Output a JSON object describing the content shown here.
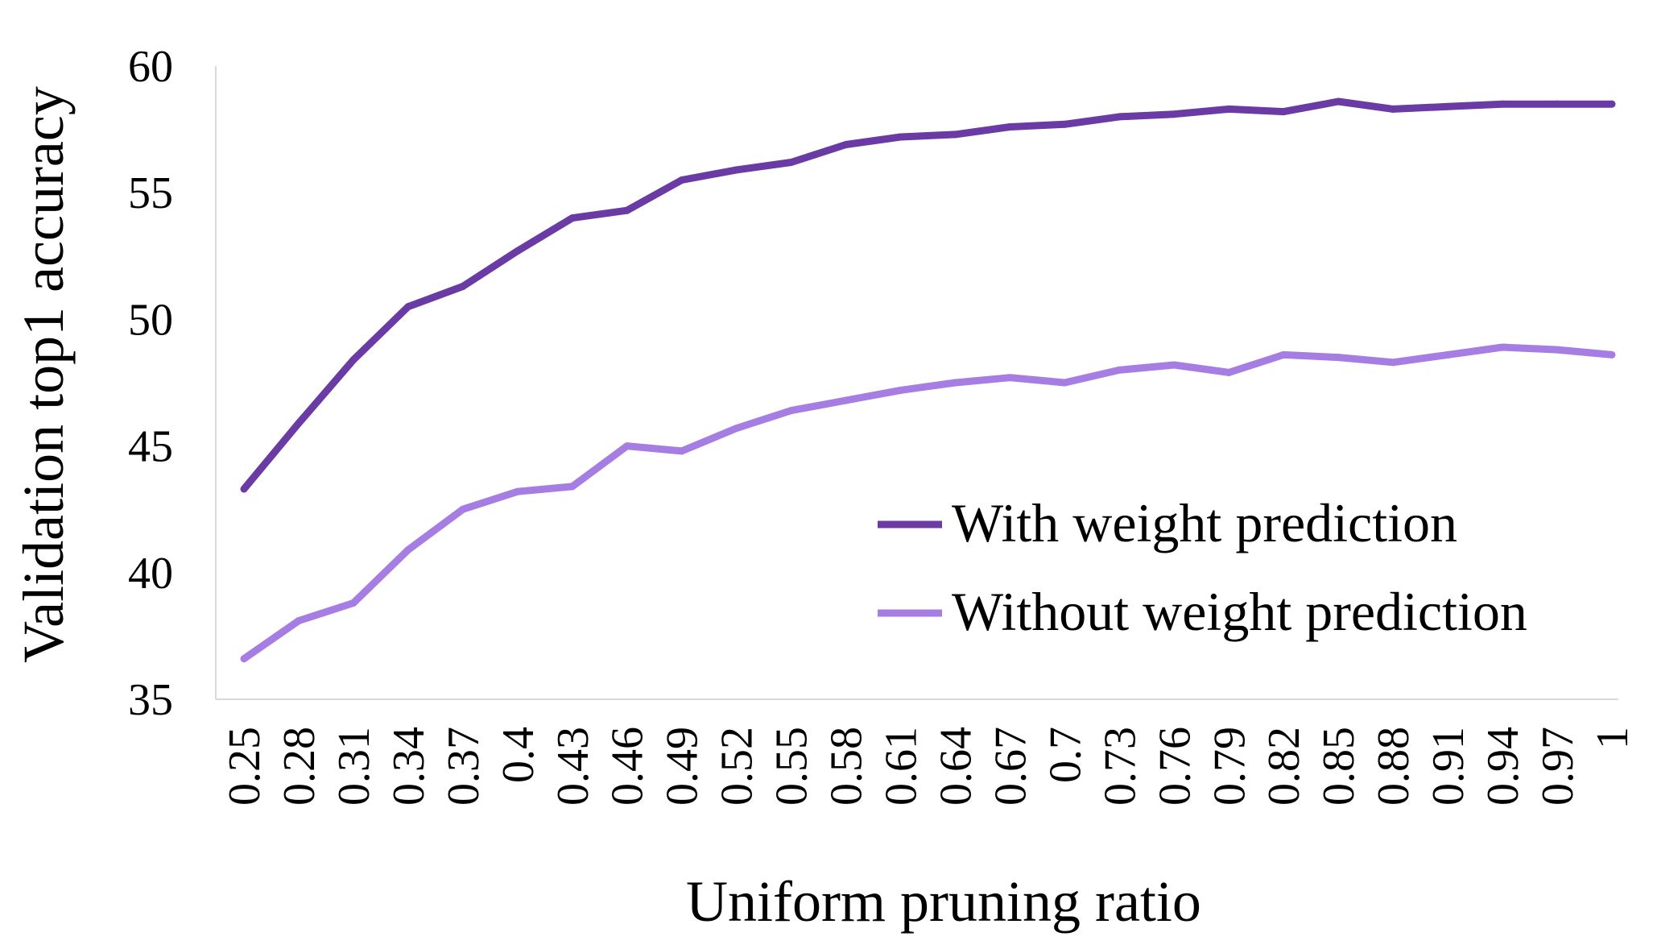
{
  "chart_data": {
    "type": "line",
    "title": "",
    "xlabel": "Uniform pruning ratio",
    "ylabel": "Validation top1 accuracy",
    "ylim": [
      35,
      60
    ],
    "yticks": [
      "35",
      "40",
      "45",
      "50",
      "55",
      "60"
    ],
    "categories": [
      "0.25",
      "0.28",
      "0.31",
      "0.34",
      "0.37",
      "0.4",
      "0.43",
      "0.46",
      "0.49",
      "0.52",
      "0.55",
      "0.58",
      "0.61",
      "0.64",
      "0.67",
      "0.7",
      "0.73",
      "0.76",
      "0.79",
      "0.82",
      "0.85",
      "0.88",
      "0.91",
      "0.94",
      "0.97",
      "1"
    ],
    "grid": false,
    "legend_position": "inside-right",
    "series": [
      {
        "name": "With weight prediction",
        "color": "#6a3aa5",
        "values": [
          43.3,
          45.9,
          48.4,
          50.5,
          51.3,
          52.7,
          54.0,
          54.3,
          55.5,
          55.9,
          56.2,
          56.9,
          57.2,
          57.3,
          57.6,
          57.7,
          58.0,
          58.1,
          58.3,
          58.2,
          58.6,
          58.3,
          58.4,
          58.5,
          58.5,
          58.5
        ]
      },
      {
        "name": "Without weight prediction",
        "color": "#a67ee3",
        "values": [
          36.6,
          38.1,
          38.8,
          40.9,
          42.5,
          43.2,
          43.4,
          45.0,
          44.8,
          45.7,
          46.4,
          46.8,
          47.2,
          47.5,
          47.7,
          47.5,
          48.0,
          48.2,
          47.9,
          48.6,
          48.5,
          48.3,
          48.6,
          48.9,
          48.8,
          48.6
        ]
      }
    ]
  }
}
